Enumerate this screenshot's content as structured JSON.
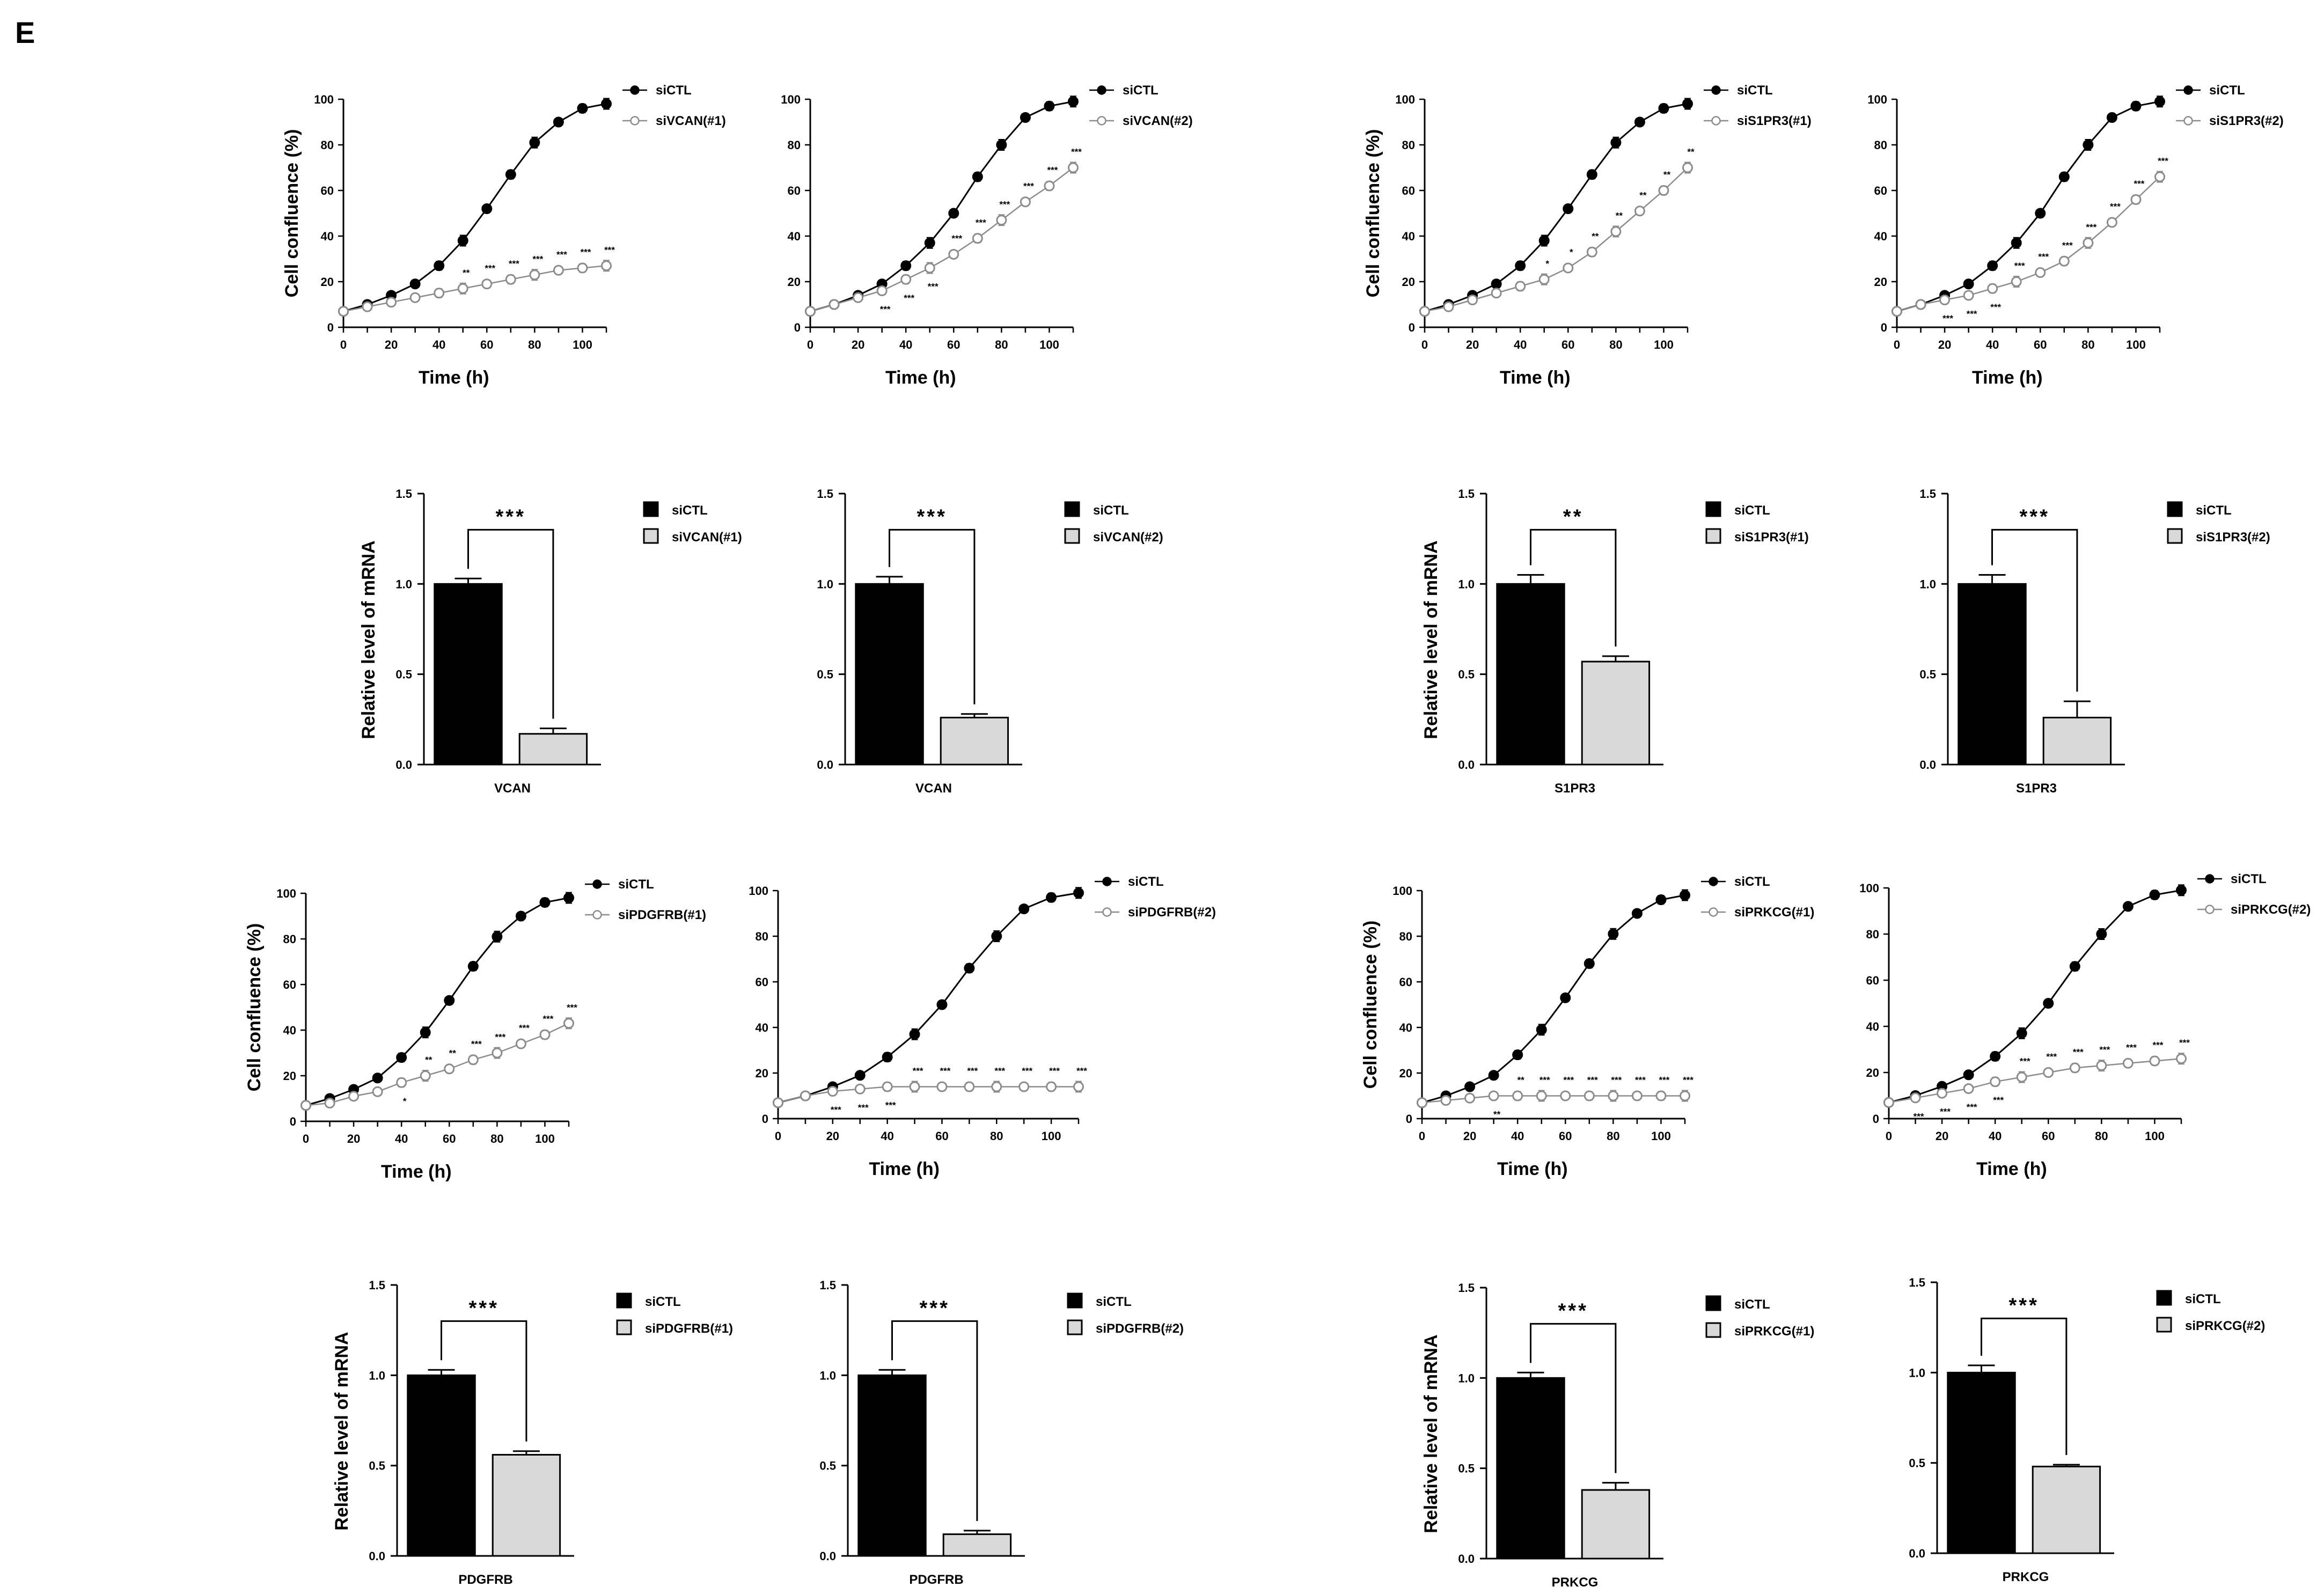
{
  "panel_label": "E",
  "chart_data": [
    {
      "type": "line",
      "title": "",
      "xlabel": "Time (h)",
      "ylabel": "Cell confluence (%)",
      "xlim": [
        0,
        110
      ],
      "ylim": [
        0,
        100
      ],
      "xticks": [
        0,
        20,
        40,
        60,
        80,
        100
      ],
      "yticks": [
        0,
        20,
        40,
        60,
        80,
        100
      ],
      "x": [
        0,
        10,
        20,
        30,
        40,
        50,
        60,
        70,
        80,
        90,
        100,
        110
      ],
      "series": [
        {
          "name": "siCTL",
          "values": [
            7,
            10,
            14,
            19,
            27,
            38,
            52,
            67,
            81,
            90,
            96,
            98
          ]
        },
        {
          "name": "siVCAN(#1)",
          "values": [
            7,
            9,
            11,
            13,
            15,
            17,
            19,
            21,
            23,
            25,
            26,
            27
          ],
          "significance": [
            "",
            "",
            "",
            "",
            "",
            "**",
            "***",
            "***",
            "***",
            "***",
            "***",
            "***"
          ]
        }
      ]
    },
    {
      "type": "line",
      "title": "",
      "xlabel": "Time (h)",
      "ylabel": "",
      "xlim": [
        0,
        110
      ],
      "ylim": [
        0,
        100
      ],
      "xticks": [
        0,
        20,
        40,
        60,
        80,
        100
      ],
      "yticks": [
        0,
        20,
        40,
        60,
        80,
        100
      ],
      "x": [
        0,
        10,
        20,
        30,
        40,
        50,
        60,
        70,
        80,
        90,
        100,
        110
      ],
      "series": [
        {
          "name": "siCTL",
          "values": [
            7,
            10,
            14,
            19,
            27,
            37,
            50,
            66,
            80,
            92,
            97,
            99
          ]
        },
        {
          "name": "siVCAN(#2)",
          "values": [
            7,
            10,
            13,
            16,
            21,
            26,
            32,
            39,
            47,
            55,
            62,
            70
          ],
          "significance": [
            "",
            "",
            "",
            "***",
            "***",
            "***",
            "***",
            "***",
            "***",
            "***",
            "***",
            "***"
          ]
        }
      ]
    },
    {
      "type": "line",
      "title": "",
      "xlabel": "Time (h)",
      "ylabel": "Cell confluence (%)",
      "xlim": [
        0,
        110
      ],
      "ylim": [
        0,
        100
      ],
      "xticks": [
        0,
        20,
        40,
        60,
        80,
        100
      ],
      "yticks": [
        0,
        20,
        40,
        60,
        80,
        100
      ],
      "x": [
        0,
        10,
        20,
        30,
        40,
        50,
        60,
        70,
        80,
        90,
        100,
        110
      ],
      "series": [
        {
          "name": "siCTL",
          "values": [
            7,
            10,
            14,
            19,
            27,
            38,
            52,
            67,
            81,
            90,
            96,
            98
          ]
        },
        {
          "name": "siS1PR3(#1)",
          "values": [
            7,
            9,
            12,
            15,
            18,
            21,
            26,
            33,
            42,
            51,
            60,
            70
          ],
          "significance": [
            "",
            "",
            "",
            "",
            "",
            "*",
            "*",
            "**",
            "**",
            "**",
            "**",
            "**"
          ]
        }
      ]
    },
    {
      "type": "line",
      "title": "",
      "xlabel": "Time (h)",
      "ylabel": "",
      "xlim": [
        0,
        110
      ],
      "ylim": [
        0,
        100
      ],
      "xticks": [
        0,
        20,
        40,
        60,
        80,
        100
      ],
      "yticks": [
        0,
        20,
        40,
        60,
        80,
        100
      ],
      "x": [
        0,
        10,
        20,
        30,
        40,
        50,
        60,
        70,
        80,
        90,
        100,
        110
      ],
      "series": [
        {
          "name": "siCTL",
          "values": [
            7,
            10,
            14,
            19,
            27,
            37,
            50,
            66,
            80,
            92,
            97,
            99
          ]
        },
        {
          "name": "siS1PR3(#2)",
          "values": [
            7,
            10,
            12,
            14,
            17,
            20,
            24,
            29,
            37,
            46,
            56,
            66
          ],
          "significance": [
            "",
            "",
            "***",
            "***",
            "***",
            "***",
            "***",
            "***",
            "***",
            "***",
            "***",
            "***"
          ]
        }
      ]
    },
    {
      "type": "bar",
      "title": "",
      "xlabel": "VCAN",
      "ylabel": "Relative level of mRNA",
      "ylim": [
        0,
        1.5
      ],
      "yticks": [
        0.0,
        0.5,
        1.0,
        1.5
      ],
      "categories": [
        "siCTL",
        "siVCAN(#1)"
      ],
      "values": [
        1.0,
        0.17
      ],
      "errors": [
        0.03,
        0.03
      ],
      "significance": "***"
    },
    {
      "type": "bar",
      "title": "",
      "xlabel": "VCAN",
      "ylabel": "",
      "ylim": [
        0,
        1.5
      ],
      "yticks": [
        0.0,
        0.5,
        1.0,
        1.5
      ],
      "categories": [
        "siCTL",
        "siVCAN(#2)"
      ],
      "values": [
        1.0,
        0.26
      ],
      "errors": [
        0.04,
        0.02
      ],
      "significance": "***"
    },
    {
      "type": "bar",
      "title": "",
      "xlabel": "S1PR3",
      "ylabel": "Relative level of mRNA",
      "ylim": [
        0,
        1.5
      ],
      "yticks": [
        0.0,
        0.5,
        1.0,
        1.5
      ],
      "categories": [
        "siCTL",
        "siS1PR3(#1)"
      ],
      "values": [
        1.0,
        0.57
      ],
      "errors": [
        0.05,
        0.03
      ],
      "significance": "**"
    },
    {
      "type": "bar",
      "title": "",
      "xlabel": "S1PR3",
      "ylabel": "",
      "ylim": [
        0,
        1.5
      ],
      "yticks": [
        0.0,
        0.5,
        1.0,
        1.5
      ],
      "categories": [
        "siCTL",
        "siS1PR3(#2)"
      ],
      "values": [
        1.0,
        0.26
      ],
      "errors": [
        0.05,
        0.09
      ],
      "significance": "***"
    },
    {
      "type": "line",
      "title": "",
      "xlabel": "Time (h)",
      "ylabel": "Cell confluence (%)",
      "xlim": [
        0,
        110
      ],
      "ylim": [
        0,
        100
      ],
      "xticks": [
        0,
        20,
        40,
        60,
        80,
        100
      ],
      "yticks": [
        0,
        20,
        40,
        60,
        80,
        100
      ],
      "x": [
        0,
        10,
        20,
        30,
        40,
        50,
        60,
        70,
        80,
        90,
        100,
        110
      ],
      "series": [
        {
          "name": "siCTL",
          "values": [
            7,
            10,
            14,
            19,
            28,
            39,
            53,
            68,
            81,
            90,
            96,
            98
          ]
        },
        {
          "name": "siPDGFRB(#1)",
          "values": [
            7,
            8,
            11,
            13,
            17,
            20,
            23,
            27,
            30,
            34,
            38,
            43
          ],
          "significance": [
            "",
            "",
            "",
            "",
            "*",
            "**",
            "**",
            "***",
            "***",
            "***",
            "***",
            "***"
          ]
        }
      ]
    },
    {
      "type": "line",
      "title": "",
      "xlabel": "Time (h)",
      "ylabel": "",
      "xlim": [
        0,
        110
      ],
      "ylim": [
        0,
        100
      ],
      "xticks": [
        0,
        20,
        40,
        60,
        80,
        100
      ],
      "yticks": [
        0,
        20,
        40,
        60,
        80,
        100
      ],
      "x": [
        0,
        10,
        20,
        30,
        40,
        50,
        60,
        70,
        80,
        90,
        100,
        110
      ],
      "series": [
        {
          "name": "siCTL",
          "values": [
            7,
            10,
            14,
            19,
            27,
            37,
            50,
            66,
            80,
            92,
            97,
            99
          ]
        },
        {
          "name": "siPDGFRB(#2)",
          "values": [
            7,
            10,
            12,
            13,
            14,
            14,
            14,
            14,
            14,
            14,
            14,
            14
          ],
          "significance": [
            "",
            "",
            "***",
            "***",
            "***",
            "***",
            "***",
            "***",
            "***",
            "***",
            "***",
            "***"
          ]
        }
      ]
    },
    {
      "type": "line",
      "title": "",
      "xlabel": "Time (h)",
      "ylabel": "Cell confluence (%)",
      "xlim": [
        0,
        110
      ],
      "ylim": [
        0,
        100
      ],
      "xticks": [
        0,
        20,
        40,
        60,
        80,
        100
      ],
      "yticks": [
        0,
        20,
        40,
        60,
        80,
        100
      ],
      "x": [
        0,
        10,
        20,
        30,
        40,
        50,
        60,
        70,
        80,
        90,
        100,
        110
      ],
      "series": [
        {
          "name": "siCTL",
          "values": [
            7,
            10,
            14,
            19,
            28,
            39,
            53,
            68,
            81,
            90,
            96,
            98
          ]
        },
        {
          "name": "siPRKCG(#1)",
          "values": [
            7,
            8,
            9,
            10,
            10,
            10,
            10,
            10,
            10,
            10,
            10,
            10
          ],
          "significance": [
            "",
            "",
            "",
            "**",
            "**",
            "***",
            "***",
            "***",
            "***",
            "***",
            "***",
            "***"
          ]
        }
      ]
    },
    {
      "type": "line",
      "title": "",
      "xlabel": "Time (h)",
      "ylabel": "",
      "xlim": [
        0,
        110
      ],
      "ylim": [
        0,
        100
      ],
      "xticks": [
        0,
        20,
        40,
        60,
        80,
        100
      ],
      "yticks": [
        0,
        20,
        40,
        60,
        80,
        100
      ],
      "x": [
        0,
        10,
        20,
        30,
        40,
        50,
        60,
        70,
        80,
        90,
        100,
        110
      ],
      "series": [
        {
          "name": "siCTL",
          "values": [
            7,
            10,
            14,
            19,
            27,
            37,
            50,
            66,
            80,
            92,
            97,
            99
          ]
        },
        {
          "name": "siPRKCG(#2)",
          "values": [
            7,
            9,
            11,
            13,
            16,
            18,
            20,
            22,
            23,
            24,
            25,
            26
          ],
          "significance": [
            "",
            "***",
            "***",
            "***",
            "***",
            "***",
            "***",
            "***",
            "***",
            "***",
            "***",
            "***"
          ]
        }
      ]
    },
    {
      "type": "bar",
      "title": "",
      "xlabel": "PDGFRB",
      "ylabel": "Relative level of mRNA",
      "ylim": [
        0,
        1.5
      ],
      "yticks": [
        0.0,
        0.5,
        1.0,
        1.5
      ],
      "categories": [
        "siCTL",
        "siPDGFRB(#1)"
      ],
      "values": [
        1.0,
        0.56
      ],
      "errors": [
        0.03,
        0.02
      ],
      "significance": "***"
    },
    {
      "type": "bar",
      "title": "",
      "xlabel": "PDGFRB",
      "ylabel": "",
      "ylim": [
        0,
        1.5
      ],
      "yticks": [
        0.0,
        0.5,
        1.0,
        1.5
      ],
      "categories": [
        "siCTL",
        "siPDGFRB(#2)"
      ],
      "values": [
        1.0,
        0.12
      ],
      "errors": [
        0.03,
        0.02
      ],
      "significance": "***"
    },
    {
      "type": "bar",
      "title": "",
      "xlabel": "PRKCG",
      "ylabel": "Relative level of mRNA",
      "ylim": [
        0,
        1.5
      ],
      "yticks": [
        0.0,
        0.5,
        1.0,
        1.5
      ],
      "categories": [
        "siCTL",
        "siPRKCG(#1)"
      ],
      "values": [
        1.0,
        0.38
      ],
      "errors": [
        0.03,
        0.04
      ],
      "significance": "***"
    },
    {
      "type": "bar",
      "title": "",
      "xlabel": "PRKCG",
      "ylabel": "",
      "ylim": [
        0,
        1.5
      ],
      "yticks": [
        0.0,
        0.5,
        1.0,
        1.5
      ],
      "categories": [
        "siCTL",
        "siPRKCG(#2)"
      ],
      "values": [
        1.0,
        0.48
      ],
      "errors": [
        0.04,
        0.01
      ],
      "significance": "***"
    }
  ]
}
